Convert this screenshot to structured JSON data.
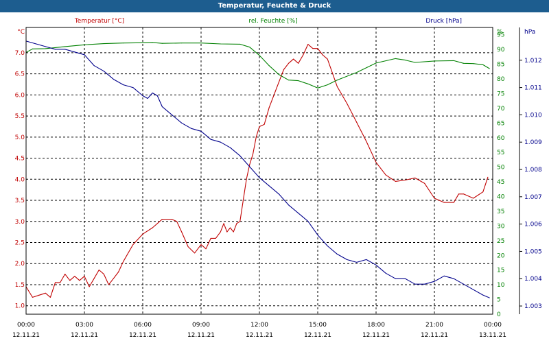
{
  "title": "Temperatur, Feuchte & Druck",
  "chart_data": {
    "type": "line",
    "title": "Temperatur, Feuchte & Druck",
    "x_ticks": [
      {
        "time": "00:00",
        "date": "12.11.21"
      },
      {
        "time": "03:00",
        "date": "12.11.21"
      },
      {
        "time": "06:00",
        "date": "12.11.21"
      },
      {
        "time": "09:00",
        "date": "12.11.21"
      },
      {
        "time": "12:00",
        "date": "12.11.21"
      },
      {
        "time": "15:00",
        "date": "12.11.21"
      },
      {
        "time": "18:00",
        "date": "12.11.21"
      },
      {
        "time": "21:00",
        "date": "12.11.21"
      },
      {
        "time": "00:00",
        "date": "13.11.21"
      }
    ],
    "xlim": [
      "12.11.21 00:00",
      "13.11.21 00:00"
    ],
    "axes": {
      "temperature": {
        "unit": "°C",
        "ylim": [
          0.8,
          7.6
        ],
        "ticks": [
          "1.0",
          "1.5",
          "2.0",
          "2.5",
          "3.0",
          "3.5",
          "4.0",
          "4.5",
          "5.0",
          "5.5",
          "6.0",
          "6.5",
          "7.0"
        ],
        "color": "#c00000"
      },
      "humidity": {
        "unit": "%",
        "ylim": [
          0,
          97.5
        ],
        "ticks": [
          "0",
          "5",
          "10",
          "15",
          "20",
          "25",
          "30",
          "35",
          "40",
          "45",
          "50",
          "55",
          "60",
          "65",
          "70",
          "75",
          "80",
          "85",
          "90",
          "95"
        ],
        "color": "#008000"
      },
      "pressure": {
        "unit": "hPa",
        "ylim": [
          1.0027,
          1.0132
        ],
        "ticks": [
          "1.003",
          "1.004",
          "1.005",
          "1.006",
          "1.007",
          "1.008",
          "1.009",
          "1.010",
          "1.011",
          "1.012"
        ],
        "color": "#00008b"
      }
    },
    "grid": true,
    "legend": "top",
    "series": [
      {
        "name": "Temperatur [°C]",
        "axis": "temperature",
        "color": "#c00000",
        "points": [
          [
            "12.11.21 00:00",
            1.45
          ],
          [
            "12.11.21 00:20",
            1.2
          ],
          [
            "12.11.21 00:40",
            1.25
          ],
          [
            "12.11.21 01:00",
            1.3
          ],
          [
            "12.11.21 01:15",
            1.2
          ],
          [
            "12.11.21 01:30",
            1.55
          ],
          [
            "12.11.21 01:45",
            1.55
          ],
          [
            "12.11.21 02:00",
            1.75
          ],
          [
            "12.11.21 02:15",
            1.6
          ],
          [
            "12.11.21 02:30",
            1.7
          ],
          [
            "12.11.21 02:45",
            1.6
          ],
          [
            "12.11.21 03:00",
            1.7
          ],
          [
            "12.11.21 03:15",
            1.45
          ],
          [
            "12.11.21 03:30",
            1.65
          ],
          [
            "12.11.21 03:45",
            1.85
          ],
          [
            "12.11.21 04:00",
            1.75
          ],
          [
            "12.11.21 04:15",
            1.5
          ],
          [
            "12.11.21 04:30",
            1.65
          ],
          [
            "12.11.21 04:45",
            1.8
          ],
          [
            "12.11.21 05:00",
            2.05
          ],
          [
            "12.11.21 05:30",
            2.45
          ],
          [
            "12.11.21 06:00",
            2.7
          ],
          [
            "12.11.21 06:30",
            2.85
          ],
          [
            "12.11.21 07:00",
            3.05
          ],
          [
            "12.11.21 07:30",
            3.05
          ],
          [
            "12.11.21 07:45",
            3.0
          ],
          [
            "12.11.21 08:00",
            2.75
          ],
          [
            "12.11.21 08:20",
            2.4
          ],
          [
            "12.11.21 08:40",
            2.25
          ],
          [
            "12.11.21 09:00",
            2.45
          ],
          [
            "12.11.21 09:15",
            2.35
          ],
          [
            "12.11.21 09:30",
            2.6
          ],
          [
            "12.11.21 09:45",
            2.6
          ],
          [
            "12.11.21 10:00",
            2.75
          ],
          [
            "12.11.21 10:10",
            2.95
          ],
          [
            "12.11.21 10:20",
            2.75
          ],
          [
            "12.11.21 10:30",
            2.85
          ],
          [
            "12.11.21 10:40",
            2.75
          ],
          [
            "12.11.21 10:50",
            2.95
          ],
          [
            "12.11.21 11:00",
            3.0
          ],
          [
            "12.11.21 11:10",
            3.5
          ],
          [
            "12.11.21 11:20",
            4.0
          ],
          [
            "12.11.21 11:30",
            4.35
          ],
          [
            "12.11.21 11:40",
            4.6
          ],
          [
            "12.11.21 11:50",
            5.0
          ],
          [
            "12.11.21 12:00",
            5.25
          ],
          [
            "12.11.21 12:15",
            5.3
          ],
          [
            "12.11.21 12:30",
            5.7
          ],
          [
            "12.11.21 13:00",
            6.3
          ],
          [
            "12.11.21 13:15",
            6.6
          ],
          [
            "12.11.21 13:30",
            6.75
          ],
          [
            "12.11.21 13:45",
            6.85
          ],
          [
            "12.11.21 14:00",
            6.75
          ],
          [
            "12.11.21 14:15",
            6.95
          ],
          [
            "12.11.21 14:30",
            7.2
          ],
          [
            "12.11.21 14:45",
            7.1
          ],
          [
            "12.11.21 15:00",
            7.1
          ],
          [
            "12.11.21 15:15",
            6.95
          ],
          [
            "12.11.21 15:30",
            6.85
          ],
          [
            "12.11.21 16:00",
            6.2
          ],
          [
            "12.11.21 16:30",
            5.8
          ],
          [
            "12.11.21 17:00",
            5.35
          ],
          [
            "12.11.21 17:30",
            4.9
          ],
          [
            "12.11.21 18:00",
            4.4
          ],
          [
            "12.11.21 18:30",
            4.1
          ],
          [
            "12.11.21 19:00",
            3.95
          ],
          [
            "12.11.21 19:30",
            3.98
          ],
          [
            "12.11.21 20:00",
            4.03
          ],
          [
            "12.11.21 20:30",
            3.9
          ],
          [
            "12.11.21 21:00",
            3.55
          ],
          [
            "12.11.21 21:30",
            3.45
          ],
          [
            "12.11.21 22:00",
            3.45
          ],
          [
            "12.11.21 22:15",
            3.65
          ],
          [
            "12.11.21 22:30",
            3.65
          ],
          [
            "12.11.21 23:00",
            3.55
          ],
          [
            "12.11.21 23:30",
            3.7
          ],
          [
            "12.11.21 23:45",
            4.05
          ]
        ]
      },
      {
        "name": "rel. Feuchte [%]",
        "axis": "humidity",
        "color": "#008000",
        "points": [
          [
            "12.11.21 00:00",
            89
          ],
          [
            "12.11.21 00:20",
            90.2
          ],
          [
            "12.11.21 01:00",
            90.3
          ],
          [
            "12.11.21 02:00",
            91
          ],
          [
            "12.11.21 03:00",
            91.6
          ],
          [
            "12.11.21 04:00",
            92
          ],
          [
            "12.11.21 05:00",
            92.2
          ],
          [
            "12.11.21 06:00",
            92.3
          ],
          [
            "12.11.21 06:30",
            92.4
          ],
          [
            "12.11.21 07:00",
            92.1
          ],
          [
            "12.11.21 08:00",
            92.2
          ],
          [
            "12.11.21 09:00",
            92.2
          ],
          [
            "12.11.21 10:00",
            91.9
          ],
          [
            "12.11.21 11:00",
            91.8
          ],
          [
            "12.11.21 11:30",
            90.8
          ],
          [
            "12.11.21 12:00",
            88
          ],
          [
            "12.11.21 12:30",
            84.5
          ],
          [
            "12.11.21 13:00",
            81.5
          ],
          [
            "12.11.21 13:30",
            79.6
          ],
          [
            "12.11.21 14:00",
            79.4
          ],
          [
            "12.11.21 14:30",
            78.3
          ],
          [
            "12.11.21 15:00",
            76.9
          ],
          [
            "12.11.21 15:30",
            78
          ],
          [
            "12.11.21 16:00",
            79.6
          ],
          [
            "12.11.21 17:00",
            82.2
          ],
          [
            "12.11.21 18:00",
            85.4
          ],
          [
            "12.11.21 19:00",
            86.9
          ],
          [
            "12.11.21 19:30",
            86.4
          ],
          [
            "12.11.21 20:00",
            85.6
          ],
          [
            "12.11.21 21:00",
            86.1
          ],
          [
            "12.11.21 22:00",
            86.2
          ],
          [
            "12.11.21 22:30",
            85.3
          ],
          [
            "12.11.21 23:00",
            85.2
          ],
          [
            "12.11.21 23:30",
            84.8
          ],
          [
            "12.11.21 23:50",
            83.5
          ]
        ]
      },
      {
        "name": "Druck [hPa]",
        "axis": "pressure",
        "color": "#00008b",
        "points": [
          [
            "12.11.21 00:00",
            1.0127
          ],
          [
            "12.11.21 00:30",
            1.0126
          ],
          [
            "12.11.21 01:00",
            1.0125
          ],
          [
            "12.11.21 01:30",
            1.0124
          ],
          [
            "12.11.21 02:00",
            1.0124
          ],
          [
            "12.11.21 02:30",
            1.0123
          ],
          [
            "12.11.21 03:00",
            1.0122
          ],
          [
            "12.11.21 03:30",
            1.0118
          ],
          [
            "12.11.21 04:00",
            1.0116
          ],
          [
            "12.11.21 04:30",
            1.0113
          ],
          [
            "12.11.21 05:00",
            1.0111
          ],
          [
            "12.11.21 05:30",
            1.011
          ],
          [
            "12.11.21 06:00",
            1.0107
          ],
          [
            "12.11.21 06:15",
            1.0106
          ],
          [
            "12.11.21 06:30",
            1.0108
          ],
          [
            "12.11.21 06:45",
            1.0107
          ],
          [
            "12.11.21 07:00",
            1.0103
          ],
          [
            "12.11.21 07:30",
            1.01
          ],
          [
            "12.11.21 08:00",
            1.0097
          ],
          [
            "12.11.21 08:30",
            1.0095
          ],
          [
            "12.11.21 09:00",
            1.0094
          ],
          [
            "12.11.21 09:30",
            1.0091
          ],
          [
            "12.11.21 10:00",
            1.009
          ],
          [
            "12.11.21 10:30",
            1.0088
          ],
          [
            "12.11.21 11:00",
            1.0085
          ],
          [
            "12.11.21 11:30",
            1.0081
          ],
          [
            "12.11.21 12:00",
            1.0077
          ],
          [
            "12.11.21 12:30",
            1.0074
          ],
          [
            "12.11.21 13:00",
            1.0071
          ],
          [
            "12.11.21 13:30",
            1.0067
          ],
          [
            "12.11.21 14:00",
            1.0064
          ],
          [
            "12.11.21 14:30",
            1.0061
          ],
          [
            "12.11.21 15:00",
            1.0056
          ],
          [
            "12.11.21 15:30",
            1.0052
          ],
          [
            "12.11.21 16:00",
            1.0049
          ],
          [
            "12.11.21 16:30",
            1.0047
          ],
          [
            "12.11.21 17:00",
            1.0046
          ],
          [
            "12.11.21 17:30",
            1.0047
          ],
          [
            "12.11.21 18:00",
            1.0045
          ],
          [
            "12.11.21 18:30",
            1.0042
          ],
          [
            "12.11.21 19:00",
            1.004
          ],
          [
            "12.11.21 19:30",
            1.004
          ],
          [
            "12.11.21 20:00",
            1.0038
          ],
          [
            "12.11.21 20:30",
            1.0038
          ],
          [
            "12.11.21 21:00",
            1.0039
          ],
          [
            "12.11.21 21:30",
            1.0041
          ],
          [
            "12.11.21 22:00",
            1.004
          ],
          [
            "12.11.21 22:30",
            1.0038
          ],
          [
            "12.11.21 23:00",
            1.0036
          ],
          [
            "12.11.21 23:30",
            1.0034
          ],
          [
            "12.11.21 23:50",
            1.0033
          ]
        ]
      }
    ]
  }
}
